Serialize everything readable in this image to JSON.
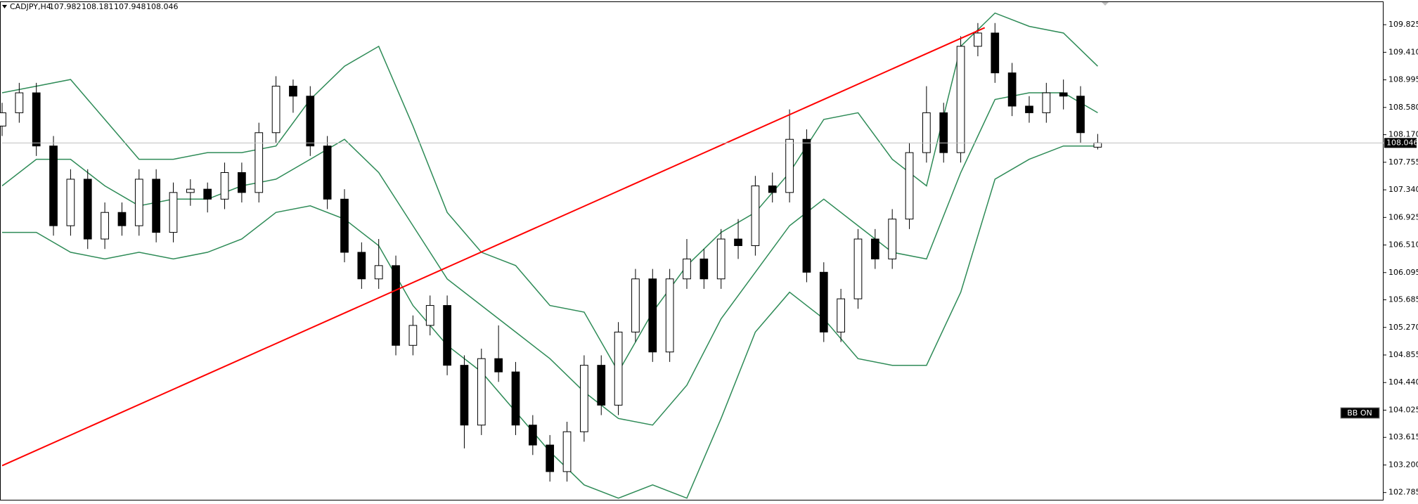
{
  "chart_data": {
    "type": "candlestick",
    "title": "CADJPY,H4",
    "candles": [
      [
        108.3,
        108.65,
        108.15,
        108.5
      ],
      [
        108.5,
        108.95,
        108.35,
        108.8
      ],
      [
        108.8,
        108.95,
        107.85,
        108.0
      ],
      [
        108.0,
        108.15,
        106.65,
        106.8
      ],
      [
        106.8,
        107.65,
        106.65,
        107.5
      ],
      [
        107.5,
        107.65,
        106.45,
        106.6
      ],
      [
        106.6,
        107.15,
        106.45,
        107.0
      ],
      [
        107.0,
        107.15,
        106.65,
        106.8
      ],
      [
        106.8,
        107.65,
        106.65,
        107.5
      ],
      [
        107.5,
        107.65,
        106.55,
        106.7
      ],
      [
        106.7,
        107.45,
        106.55,
        107.3
      ],
      [
        107.3,
        107.5,
        107.1,
        107.35
      ],
      [
        107.35,
        107.45,
        107.0,
        107.2
      ],
      [
        107.2,
        107.75,
        107.05,
        107.6
      ],
      [
        107.6,
        107.75,
        107.15,
        107.3
      ],
      [
        107.3,
        108.35,
        107.15,
        108.2
      ],
      [
        108.2,
        109.05,
        108.05,
        108.9
      ],
      [
        108.9,
        109.0,
        108.5,
        108.75
      ],
      [
        108.75,
        108.9,
        107.85,
        108.0
      ],
      [
        108.0,
        108.15,
        107.05,
        107.2
      ],
      [
        107.2,
        107.35,
        106.25,
        106.4
      ],
      [
        106.4,
        106.55,
        105.85,
        106.0
      ],
      [
        106.0,
        106.6,
        105.85,
        106.2
      ],
      [
        106.2,
        106.35,
        104.85,
        105.0
      ],
      [
        105.0,
        105.45,
        104.85,
        105.3
      ],
      [
        105.3,
        105.75,
        105.15,
        105.6
      ],
      [
        105.6,
        105.75,
        104.55,
        104.7
      ],
      [
        104.7,
        104.85,
        103.45,
        103.8
      ],
      [
        103.8,
        104.95,
        103.65,
        104.8
      ],
      [
        104.8,
        105.3,
        104.45,
        104.6
      ],
      [
        104.6,
        104.75,
        103.65,
        103.8
      ],
      [
        103.8,
        103.95,
        103.35,
        103.5
      ],
      [
        103.5,
        103.65,
        102.95,
        103.1
      ],
      [
        103.1,
        103.85,
        102.95,
        103.7
      ],
      [
        103.7,
        104.85,
        103.55,
        104.7
      ],
      [
        104.7,
        104.85,
        103.95,
        104.1
      ],
      [
        104.1,
        105.35,
        103.95,
        105.2
      ],
      [
        105.2,
        106.15,
        105.05,
        106.0
      ],
      [
        106.0,
        106.15,
        104.75,
        104.9
      ],
      [
        104.9,
        106.15,
        104.75,
        106.0
      ],
      [
        106.0,
        106.6,
        105.85,
        106.3
      ],
      [
        106.3,
        106.45,
        105.85,
        106.0
      ],
      [
        106.0,
        106.75,
        105.85,
        106.6
      ],
      [
        106.6,
        106.9,
        106.3,
        106.5
      ],
      [
        106.5,
        107.55,
        106.35,
        107.4
      ],
      [
        107.4,
        107.6,
        107.15,
        107.3
      ],
      [
        107.3,
        108.55,
        107.15,
        108.1
      ],
      [
        108.1,
        108.25,
        105.95,
        106.1
      ],
      [
        106.1,
        106.25,
        105.05,
        105.2
      ],
      [
        105.2,
        105.85,
        105.05,
        105.7
      ],
      [
        105.7,
        106.75,
        105.55,
        106.6
      ],
      [
        106.6,
        106.75,
        106.15,
        106.3
      ],
      [
        106.3,
        107.05,
        106.15,
        106.9
      ],
      [
        106.9,
        108.05,
        106.75,
        107.9
      ],
      [
        107.9,
        108.9,
        107.75,
        108.5
      ],
      [
        108.5,
        108.65,
        107.75,
        107.9
      ],
      [
        107.9,
        109.65,
        107.75,
        109.5
      ],
      [
        109.5,
        109.85,
        109.35,
        109.7
      ],
      [
        109.7,
        109.85,
        108.95,
        109.1
      ],
      [
        109.1,
        109.25,
        108.45,
        108.6
      ],
      [
        108.6,
        108.75,
        108.35,
        108.5
      ],
      [
        108.5,
        108.95,
        108.35,
        108.8
      ],
      [
        108.8,
        109.0,
        108.55,
        108.75
      ],
      [
        108.75,
        108.9,
        108.05,
        108.2
      ],
      [
        107.982,
        108.181,
        107.948,
        108.046
      ]
    ],
    "bull_color": "#ffffff",
    "bear_color": "#000000",
    "bands": {
      "color": "#2e8b57",
      "x": [
        0,
        2,
        4,
        6,
        8,
        10,
        12,
        14,
        16,
        18,
        20,
        22,
        24,
        26,
        28,
        30,
        32,
        34,
        36,
        38,
        40,
        42,
        44,
        46,
        48,
        50,
        52,
        54,
        56,
        58,
        60,
        62,
        64
      ],
      "upper": [
        108.8,
        108.9,
        109.0,
        108.4,
        107.8,
        107.8,
        107.9,
        107.9,
        108.0,
        108.7,
        109.2,
        109.5,
        108.3,
        107.0,
        106.4,
        106.2,
        105.6,
        105.5,
        104.6,
        105.5,
        106.2,
        106.7,
        107.0,
        107.6,
        108.4,
        108.5,
        107.8,
        107.4,
        109.5,
        110.0,
        109.8,
        109.7,
        109.2
      ],
      "middle": [
        107.4,
        107.8,
        107.8,
        107.4,
        107.1,
        107.2,
        107.2,
        107.4,
        107.5,
        107.8,
        108.1,
        107.6,
        106.8,
        106.0,
        105.6,
        105.2,
        104.8,
        104.3,
        103.9,
        103.8,
        104.4,
        105.4,
        106.1,
        106.8,
        107.2,
        106.8,
        106.4,
        106.3,
        107.6,
        108.7,
        108.8,
        108.8,
        108.5
      ],
      "lower": [
        106.7,
        106.7,
        106.4,
        106.3,
        106.4,
        106.3,
        106.4,
        106.6,
        107.0,
        107.1,
        106.9,
        106.5,
        105.6,
        105.0,
        104.6,
        104.0,
        103.4,
        102.9,
        102.7,
        102.9,
        102.7,
        103.9,
        105.2,
        105.8,
        105.4,
        104.8,
        104.7,
        104.7,
        105.8,
        107.5,
        107.8,
        108.0,
        108.0
      ]
    },
    "trendline": {
      "color": "#ff0000",
      "x": [
        0,
        57.4
      ],
      "values": [
        103.19,
        109.78
      ]
    },
    "xlim": [
      0,
      80.7
    ],
    "ylim": [
      102.676,
      110.165
    ],
    "yticks": [
      109.825,
      {
        "value": 109.41,
        "label": "109.410"
      },
      108.995,
      {
        "value": 108.58,
        "label": "108.580"
      },
      {
        "value": 108.17,
        "label": "108.170"
      },
      107.755,
      {
        "value": 107.34,
        "label": "107.340"
      },
      106.925,
      {
        "value": 106.51,
        "label": "106.510"
      },
      106.095,
      105.685,
      {
        "value": 105.27,
        "label": "105.270"
      },
      104.855,
      {
        "value": 104.44,
        "label": "104.440"
      },
      104.025,
      103.615,
      {
        "value": 103.2,
        "label": "103.200"
      },
      102.785
    ],
    "indicator_label": "BB ON"
  }
}
